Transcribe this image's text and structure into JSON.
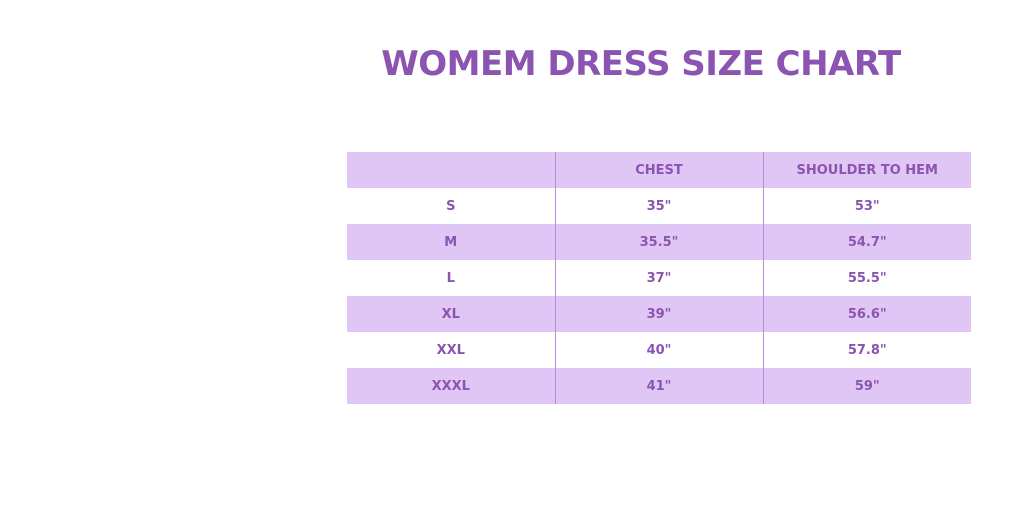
{
  "title": "WOMEM DRESS SIZE CHART",
  "colors": {
    "accent": "#8b54b0",
    "stripe": "#e0c6f5"
  },
  "table": {
    "headers": [
      "",
      "CHEST",
      "SHOULDER TO HEM"
    ],
    "rows": [
      [
        "S",
        "35\"",
        "53\""
      ],
      [
        "M",
        "35.5\"",
        "54.7\""
      ],
      [
        "L",
        "37\"",
        "55.5\""
      ],
      [
        "XL",
        "39\"",
        "56.6\""
      ],
      [
        "XXL",
        "40\"",
        "57.8\""
      ],
      [
        "XXXL",
        "41\"",
        "59\""
      ]
    ]
  }
}
